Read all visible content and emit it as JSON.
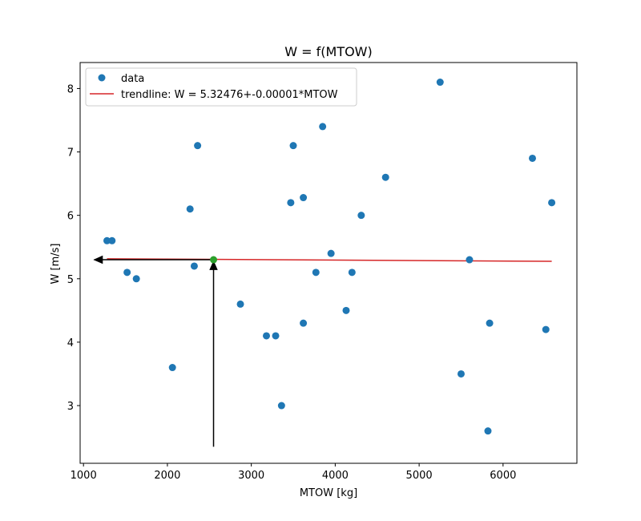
{
  "chart_data": {
    "type": "scatter",
    "title": "W = f(MTOW)",
    "xlabel": "MTOW [kg]",
    "ylabel": "W [m/s]",
    "xlim": [
      960,
      6880
    ],
    "ylim": [
      2.09,
      8.41
    ],
    "xticks": [
      1000,
      2000,
      3000,
      4000,
      5000,
      6000
    ],
    "yticks": [
      3,
      4,
      5,
      6,
      7,
      8
    ],
    "grid": false,
    "legend_placement": "upper-left",
    "colors": {
      "data": "#1f77b4",
      "trendline": "#d62728",
      "highlight_point": "#2ca02c",
      "arrow": "#000000"
    },
    "series": [
      {
        "name": "data",
        "kind": "scatter",
        "points": [
          {
            "x": 1280,
            "y": 5.6
          },
          {
            "x": 1340,
            "y": 5.6
          },
          {
            "x": 1520,
            "y": 5.1
          },
          {
            "x": 1630,
            "y": 5.0
          },
          {
            "x": 2060,
            "y": 3.6
          },
          {
            "x": 2270,
            "y": 6.1
          },
          {
            "x": 2320,
            "y": 5.2
          },
          {
            "x": 2360,
            "y": 7.1
          },
          {
            "x": 2870,
            "y": 4.6
          },
          {
            "x": 3180,
            "y": 4.1
          },
          {
            "x": 3290,
            "y": 4.1
          },
          {
            "x": 3360,
            "y": 3.0
          },
          {
            "x": 3470,
            "y": 6.2
          },
          {
            "x": 3500,
            "y": 7.1
          },
          {
            "x": 3620,
            "y": 6.28
          },
          {
            "x": 3620,
            "y": 4.3
          },
          {
            "x": 3770,
            "y": 5.1
          },
          {
            "x": 3850,
            "y": 7.4
          },
          {
            "x": 3950,
            "y": 5.4
          },
          {
            "x": 4130,
            "y": 4.5
          },
          {
            "x": 4200,
            "y": 5.1
          },
          {
            "x": 4310,
            "y": 6.0
          },
          {
            "x": 4600,
            "y": 6.6
          },
          {
            "x": 5250,
            "y": 8.1
          },
          {
            "x": 5500,
            "y": 3.5
          },
          {
            "x": 5600,
            "y": 5.3
          },
          {
            "x": 5820,
            "y": 2.6
          },
          {
            "x": 5840,
            "y": 4.3
          },
          {
            "x": 6350,
            "y": 6.9
          },
          {
            "x": 6510,
            "y": 4.2
          },
          {
            "x": 6580,
            "y": 6.2
          }
        ]
      },
      {
        "name": "trendline: W = 5.32476+-0.00001*MTOW",
        "kind": "line",
        "points": [
          {
            "x": 1280,
            "y": 5.315
          },
          {
            "x": 6580,
            "y": 5.275
          }
        ]
      }
    ],
    "annotations": {
      "highlight_point": {
        "x": 2550,
        "y": 5.3
      },
      "vertical_arrow": {
        "x": 2550,
        "y_from": 2.35,
        "y_to": 5.27
      },
      "horizontal_arrow": {
        "y": 5.3,
        "x_from": 2550,
        "x_to": 1130
      }
    }
  }
}
